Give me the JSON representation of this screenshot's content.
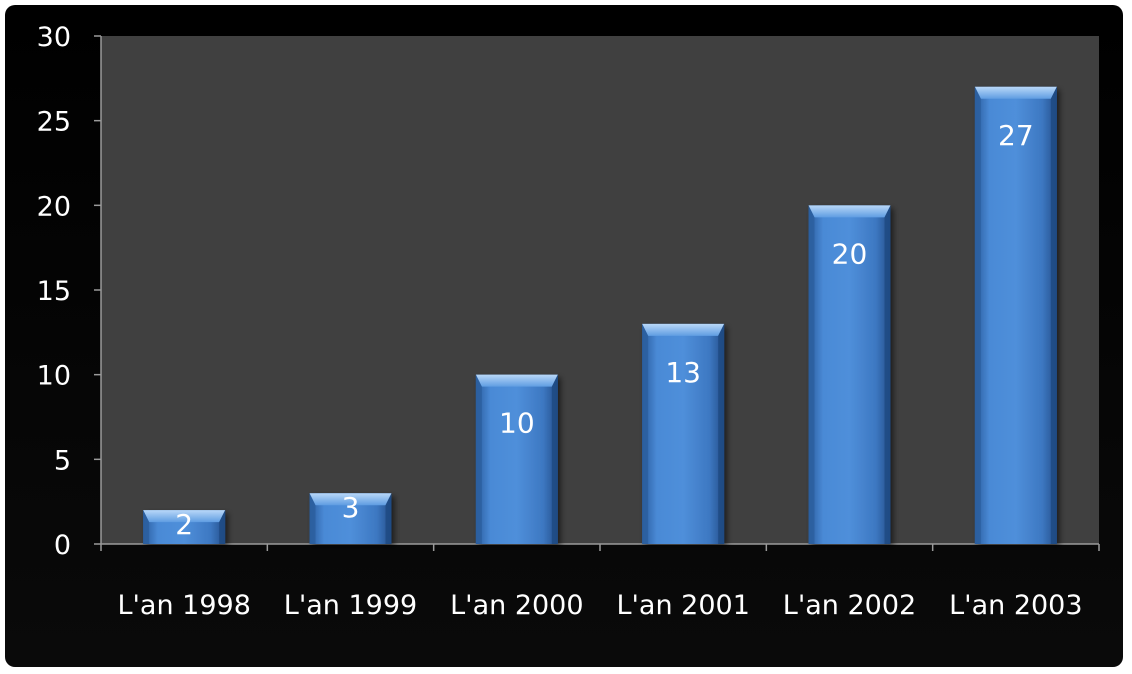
{
  "chart_data": {
    "type": "bar",
    "categories": [
      "L'an 1998",
      "L'an 1999",
      "L'an 2000",
      "L'an 2001",
      "L'an 2002",
      "L'an 2003"
    ],
    "values": [
      2,
      3,
      10,
      13,
      20,
      27
    ],
    "data_labels": [
      "2",
      "3",
      "10",
      "13",
      "20",
      "27"
    ],
    "title": "",
    "xlabel": "",
    "ylabel": "",
    "ylim": [
      0,
      30
    ],
    "yticks": [
      0,
      5,
      10,
      15,
      20,
      25,
      30
    ],
    "ytick_labels": [
      "0",
      "5",
      "10",
      "15",
      "20",
      "25",
      "30"
    ],
    "grid": false,
    "legend": "none",
    "colors": {
      "frame": "#000000",
      "plot_background": "#404040",
      "bar_top": "#8fbff0",
      "bar_main": "#3f7fcf",
      "bar_dark": "#1d4f8f",
      "text": "#ffffff",
      "axis": "#9a9a9a"
    }
  }
}
